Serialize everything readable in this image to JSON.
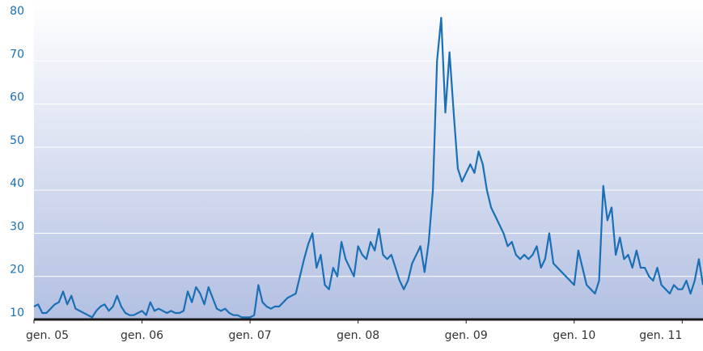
{
  "chart_data": {
    "type": "line",
    "categories": [
      "gen. 05",
      null,
      null,
      null,
      null,
      null,
      null,
      null,
      null,
      null,
      null,
      null,
      null,
      null,
      null,
      null,
      null,
      null,
      null,
      null,
      null,
      null,
      null,
      null,
      null,
      null,
      "gen. 06",
      null,
      null,
      null,
      null,
      null,
      null,
      null,
      null,
      null,
      null,
      null,
      null,
      null,
      null,
      null,
      null,
      null,
      null,
      null,
      null,
      null,
      null,
      null,
      null,
      null,
      "gen. 07",
      null,
      null,
      null,
      null,
      null,
      null,
      null,
      null,
      null,
      null,
      null,
      null,
      null,
      null,
      null,
      null,
      null,
      null,
      null,
      null,
      null,
      null,
      null,
      null,
      null,
      "gen. 08",
      null,
      null,
      null,
      null,
      null,
      null,
      null,
      null,
      null,
      null,
      null,
      null,
      null,
      null,
      null,
      null,
      null,
      null,
      null,
      null,
      null,
      null,
      null,
      null,
      null,
      "gen. 09",
      null,
      null,
      null,
      null,
      null,
      null,
      null,
      null,
      null,
      null,
      null,
      null,
      null,
      null,
      null,
      null,
      null,
      null,
      null,
      null,
      null,
      null,
      null,
      null,
      null,
      "gen. 10",
      null,
      null,
      null,
      null,
      null,
      null,
      null,
      null,
      null,
      null,
      null,
      null,
      null,
      null,
      null,
      null,
      null,
      null,
      null,
      null,
      null,
      null,
      null,
      null,
      null,
      "gen. 11",
      null,
      null,
      null,
      null,
      null
    ],
    "values": [
      13,
      13.5,
      11.5,
      11.5,
      12.5,
      13.5,
      14,
      16.5,
      13.5,
      15.5,
      12.5,
      12,
      11.5,
      11,
      10.5,
      12,
      13,
      13.5,
      12,
      13,
      15.5,
      13,
      11.5,
      11,
      11,
      11.5,
      12,
      11,
      14,
      12,
      12.5,
      12,
      11.5,
      12,
      11.5,
      11.5,
      12,
      16.5,
      14,
      17.5,
      16,
      13.5,
      17.5,
      15,
      12.5,
      12,
      12.5,
      11.5,
      11,
      11,
      10.5,
      10.5,
      10.5,
      11,
      18,
      14,
      13,
      12.5,
      13,
      13,
      14,
      15,
      15.5,
      16,
      20,
      24,
      27.5,
      30,
      22,
      25,
      18,
      17,
      22,
      20,
      28,
      24,
      22,
      20,
      27,
      25,
      24,
      28,
      26,
      31,
      25,
      24,
      25,
      22,
      19,
      17,
      19,
      23,
      25,
      27,
      21,
      28,
      40,
      70,
      80,
      58,
      72,
      58,
      45,
      42,
      44,
      46,
      44,
      49,
      46,
      40,
      36,
      34,
      32,
      30,
      27,
      28,
      25,
      24,
      25,
      24,
      25,
      27,
      22,
      24,
      30,
      23,
      22,
      21,
      20,
      19,
      18,
      26,
      22,
      18,
      17,
      16,
      19,
      41,
      33,
      36,
      25,
      29,
      24,
      25,
      22,
      26,
      22,
      22,
      20,
      19,
      22,
      18,
      17,
      16,
      18,
      17,
      17,
      19,
      16,
      19,
      24,
      18
    ],
    "color": "#1a6fb5",
    "ylim": [
      10,
      80
    ],
    "yticks": [
      10,
      20,
      30,
      40,
      50,
      60,
      70,
      80
    ],
    "grid": true
  }
}
